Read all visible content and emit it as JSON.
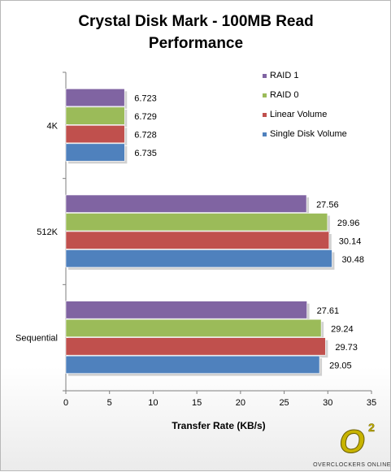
{
  "chart_data": {
    "type": "bar",
    "orientation": "horizontal",
    "title_lines": [
      "Crystal Disk Mark - 100MB Read",
      "Performance"
    ],
    "title": "Crystal Disk Mark - 100MB Read Performance",
    "xlabel": "Transfer Rate (KB/s)",
    "ylabel": "",
    "xlim": [
      0,
      35
    ],
    "x_ticks": [
      "0",
      "5",
      "10",
      "15",
      "20",
      "25",
      "30",
      "35"
    ],
    "categories": [
      "4K",
      "512K",
      "Sequential"
    ],
    "series": [
      {
        "name": "RAID 1",
        "color": "#8064a2",
        "values": [
          6.723,
          27.56,
          27.61
        ]
      },
      {
        "name": "RAID 0",
        "color": "#9bbb59",
        "values": [
          6.729,
          29.96,
          29.24
        ]
      },
      {
        "name": "Linear Volume",
        "color": "#c0504d",
        "values": [
          6.728,
          30.14,
          29.73
        ]
      },
      {
        "name": "Single Disk Volume",
        "color": "#4f81bd",
        "values": [
          6.735,
          30.48,
          29.05
        ]
      }
    ],
    "value_labels": [
      [
        "6.723",
        "27.56",
        "27.61"
      ],
      [
        "6.729",
        "29.96",
        "29.24"
      ],
      [
        "6.728",
        "30.14",
        "29.73"
      ],
      [
        "6.735",
        "30.48",
        "29.05"
      ]
    ],
    "legend_order": [
      "RAID 1",
      "RAID 0",
      "Linear Volume",
      "Single Disk Volume"
    ],
    "legend_position": "top-right",
    "grid": false
  },
  "logo": {
    "mark": "O",
    "superscript": "2",
    "caption": "OVERCLOCKERS ONLINE"
  }
}
